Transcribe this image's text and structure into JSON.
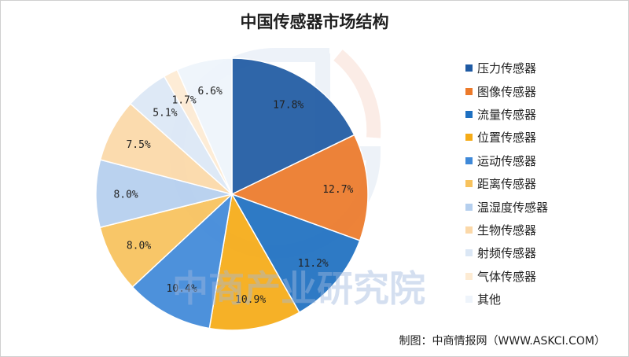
{
  "title": "中国传感器市场结构",
  "source": "制图：中商情报网（WWW.ASKCI.COM）",
  "watermark": "中商产业研究院",
  "chart_data": {
    "type": "pie",
    "title": "中国传感器市场结构",
    "categories": [
      "压力传感器",
      "图像传感器",
      "流量传感器",
      "位置传感器",
      "运动传感器",
      "距离传感器",
      "温湿度传感器",
      "生物传感器",
      "射频传感器",
      "气体传感器",
      "其他"
    ],
    "values": [
      17.8,
      12.7,
      11.2,
      10.9,
      10.4,
      8.0,
      8.0,
      7.5,
      5.1,
      1.7,
      6.6
    ],
    "labels": [
      "17.8%",
      "12.7%",
      "11.2%",
      "10.9%",
      "10.4%",
      "8.0%",
      "8.0%",
      "7.5%",
      "5.1%",
      "1.7%",
      "6.6%"
    ],
    "colors": [
      "#1f5aa3",
      "#ec7a2a",
      "#1e70c1",
      "#f5ab17",
      "#3f89d8",
      "#f7c25d",
      "#b5cfee",
      "#fbd8a8",
      "#dbe7f5",
      "#fdebd3",
      "#eef4fb"
    ],
    "legend_position": "right"
  }
}
